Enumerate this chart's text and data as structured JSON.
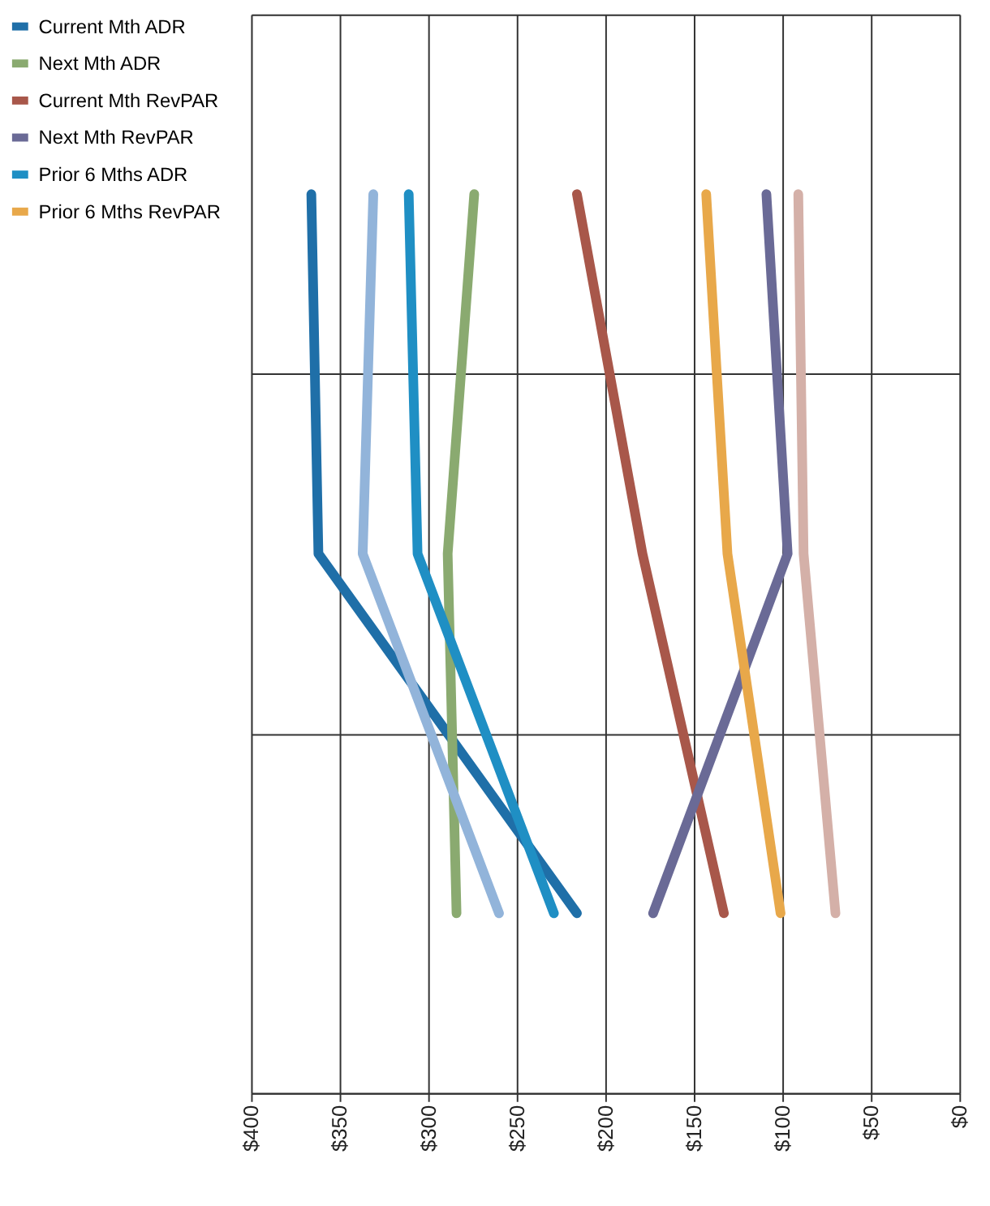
{
  "chart_data": {
    "type": "line",
    "orientation": "horizontal",
    "categories": [
      null,
      null,
      null
    ],
    "xlim": [
      400,
      0
    ],
    "xticks": [
      {
        "value": 400,
        "label": "$400"
      },
      {
        "value": 350,
        "label": "$350"
      },
      {
        "value": 300,
        "label": "$300"
      },
      {
        "value": 250,
        "label": "$250"
      },
      {
        "value": 200,
        "label": "$200"
      },
      {
        "value": 150,
        "label": "$150"
      },
      {
        "value": 100,
        "label": "$100"
      },
      {
        "value": 50,
        "label": "$50"
      },
      {
        "value": 0,
        "label": "$0"
      }
    ],
    "series": [
      {
        "name": "Current Mth ADR",
        "color": "#1f6fa8",
        "values": [
          366,
          362,
          216
        ]
      },
      {
        "name": "Next Mth ADR",
        "color": "#8aaa70",
        "values": [
          274,
          289,
          284
        ]
      },
      {
        "name": "Current Mth RevPAR",
        "color": "#a8574a",
        "values": [
          216,
          179,
          133
        ]
      },
      {
        "name": "Next Mth RevPAR",
        "color": "#6a6a96",
        "values": [
          109,
          97,
          173
        ]
      },
      {
        "name": "Prior 6 Mths ADR",
        "color": "#1f8fc4",
        "values": [
          311,
          306,
          229
        ]
      },
      {
        "name": "Prior 6 Mths RevPAR",
        "color": "#e8a84a",
        "values": [
          143,
          131,
          101
        ]
      },
      {
        "color": "#92b4da",
        "values": [
          331,
          337,
          260
        ]
      },
      {
        "color": "#d4b0a8",
        "values": [
          91,
          88,
          70
        ]
      }
    ],
    "grid": true,
    "legend": "left",
    "marker": "none",
    "line_style": "solid"
  }
}
